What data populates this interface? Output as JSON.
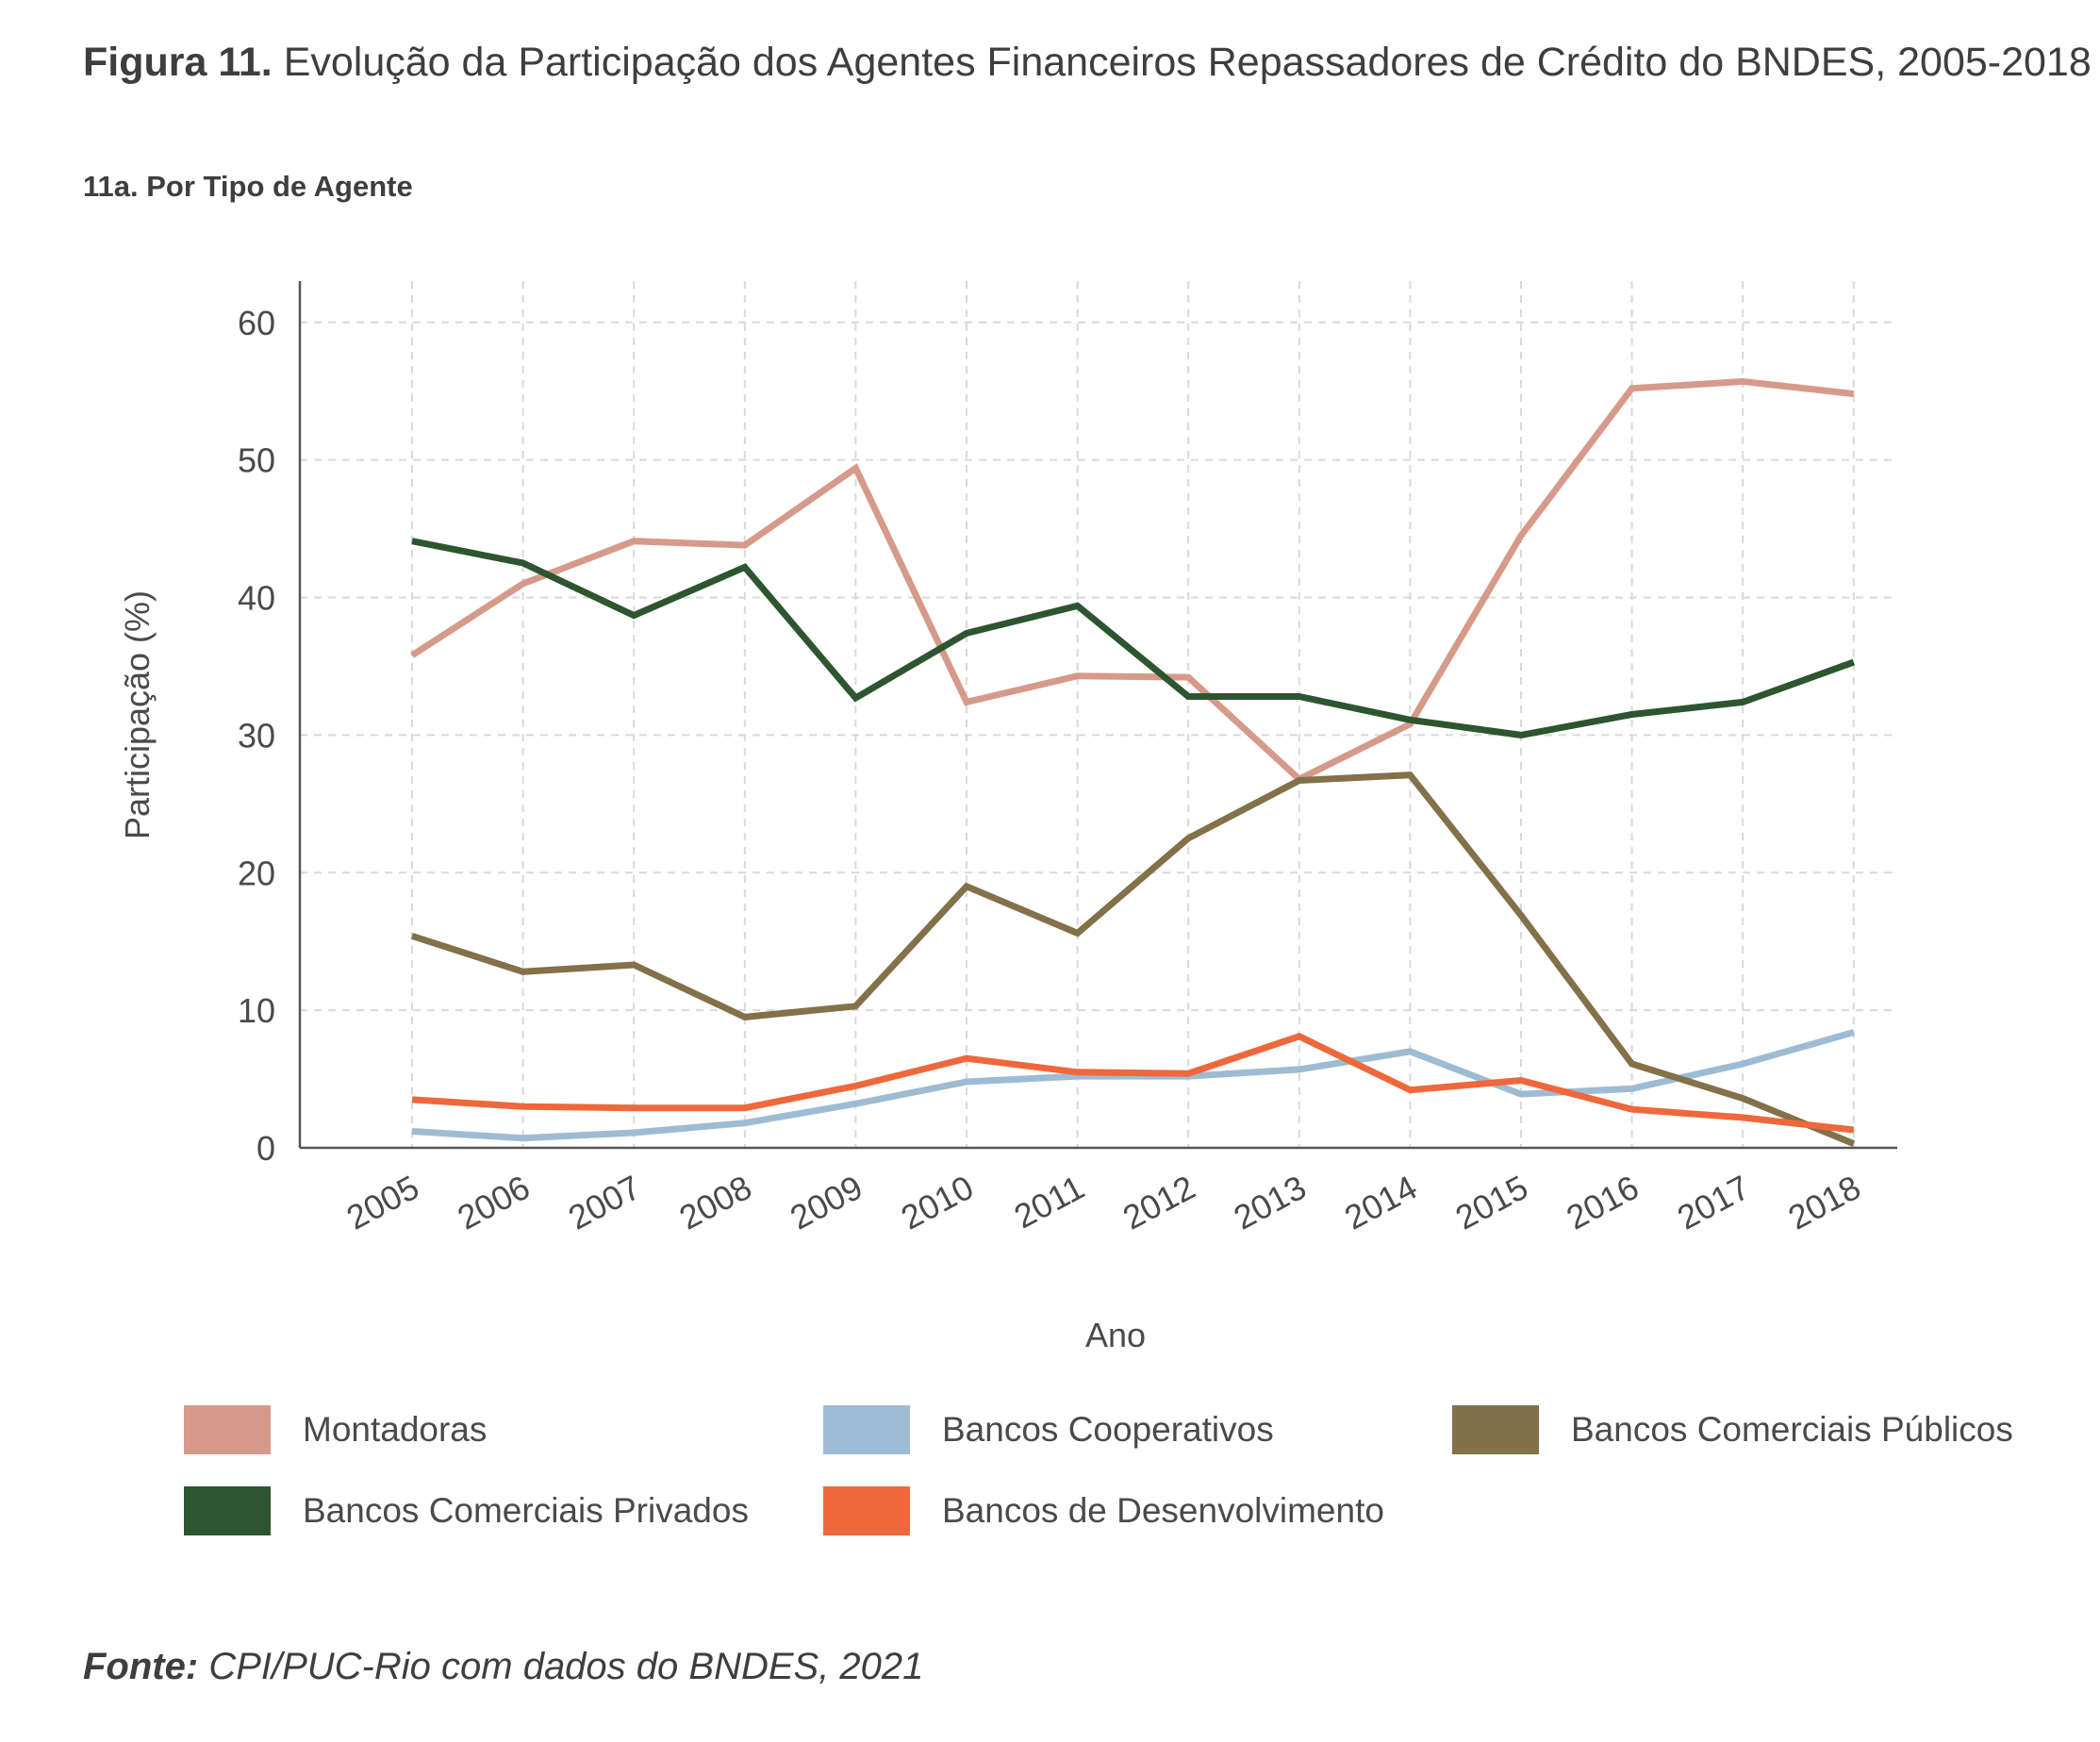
{
  "figure": {
    "label": "Figura 11.",
    "title": "Evolução da Participação dos Agentes Financeiros Repassadores de Crédito do BNDES, 2005-2018",
    "subtitle": "11a. Por Tipo de Agente"
  },
  "source": {
    "label": "Fonte:",
    "text": "CPI/PUC-Rio com dados do BNDES, 2021"
  },
  "chart_data": {
    "type": "line",
    "title": "",
    "xlabel": "Ano",
    "ylabel": "Participação (%)",
    "ylim": [
      0,
      63
    ],
    "yticks": [
      0,
      10,
      20,
      30,
      40,
      50,
      60
    ],
    "grid": true,
    "legend_position": "bottom",
    "categories": [
      "2005",
      "2006",
      "2007",
      "2008",
      "2009",
      "2010",
      "2011",
      "2012",
      "2013",
      "2014",
      "2015",
      "2016",
      "2017",
      "2018"
    ],
    "series": [
      {
        "name": "Montadoras",
        "color": "#d69a8a",
        "values": [
          35.8,
          41.0,
          44.1,
          43.8,
          49.4,
          32.4,
          34.3,
          34.2,
          26.8,
          30.8,
          44.5,
          55.2,
          55.7,
          54.8
        ]
      },
      {
        "name": "Bancos Cooperativos",
        "color": "#9dbcd4",
        "values": [
          1.2,
          0.7,
          1.1,
          1.8,
          3.2,
          4.8,
          5.2,
          5.2,
          5.7,
          7.0,
          3.9,
          4.3,
          6.1,
          8.4
        ]
      },
      {
        "name": "Bancos Comerciais Públicos",
        "color": "#827149",
        "values": [
          15.4,
          12.8,
          13.3,
          9.5,
          10.3,
          19.0,
          15.6,
          22.5,
          26.7,
          27.1,
          16.9,
          6.1,
          3.6,
          0.3
        ]
      },
      {
        "name": "Bancos Comerciais Privados",
        "color": "#2d5530",
        "values": [
          44.1,
          42.5,
          38.7,
          42.2,
          32.7,
          37.4,
          39.4,
          32.8,
          32.8,
          31.1,
          30.0,
          31.5,
          32.4,
          35.3
        ]
      },
      {
        "name": "Bancos de Desenvolvimento",
        "color": "#ee683b",
        "values": [
          3.5,
          3.0,
          2.9,
          2.9,
          4.5,
          6.5,
          5.5,
          5.4,
          8.1,
          4.2,
          4.9,
          2.8,
          2.2,
          1.3
        ]
      }
    ]
  }
}
